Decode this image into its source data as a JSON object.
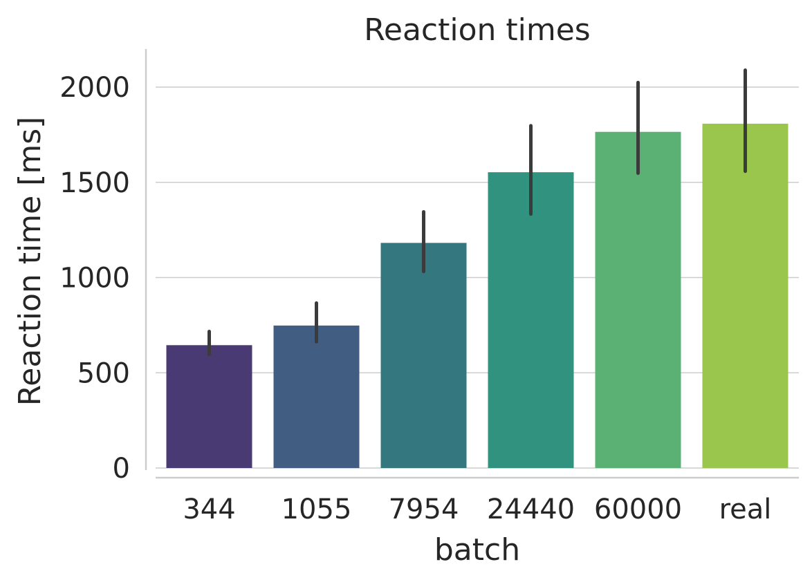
{
  "chart_data": {
    "type": "bar",
    "title": "Reaction times",
    "xlabel": "batch",
    "ylabel": "Reaction time [ms]",
    "categories": [
      "344",
      "1055",
      "7954",
      "24440",
      "60000",
      "real"
    ],
    "values": [
      645,
      748,
      1182,
      1553,
      1765,
      1808
    ],
    "error_low": [
      598,
      663,
      1032,
      1333,
      1548,
      1558
    ],
    "error_high": [
      717,
      866,
      1345,
      1797,
      2024,
      2089
    ],
    "colors": [
      "#4a3a73",
      "#415d81",
      "#35777f",
      "#329280",
      "#5bb173",
      "#9ac64d"
    ],
    "ylim": [
      0,
      2200
    ],
    "yticks": [
      0,
      500,
      1000,
      1500,
      2000
    ],
    "ytick_labels": [
      "0",
      "500",
      "1000",
      "1500",
      "2000"
    ],
    "grid": "horizontal",
    "legend": "none"
  }
}
